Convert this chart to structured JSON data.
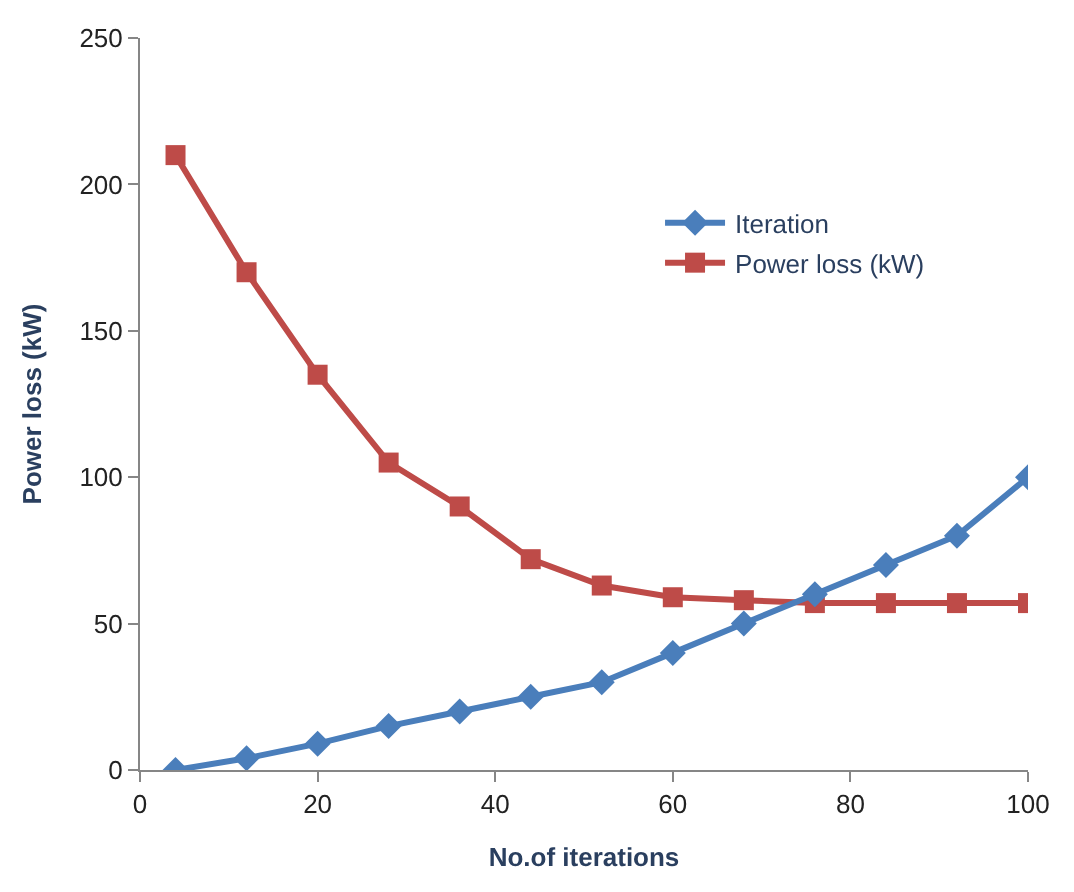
{
  "chart_data": {
    "type": "line",
    "xlabel": "No.of iterations",
    "ylabel": "Power loss (kW)",
    "x": [
      4,
      12,
      20,
      28,
      36,
      44,
      52,
      60,
      68,
      76,
      84,
      92,
      100
    ],
    "series": [
      {
        "name": "Iteration",
        "color": "#4a7ebb",
        "marker": "diamond",
        "values": [
          0,
          4,
          9,
          15,
          20,
          25,
          30,
          40,
          50,
          60,
          70,
          80,
          100
        ]
      },
      {
        "name": "Power loss (kW)",
        "color": "#be4b48",
        "marker": "square",
        "values": [
          210,
          170,
          135,
          105,
          90,
          72,
          63,
          59,
          58,
          57,
          57,
          57,
          57
        ]
      }
    ],
    "xlim": [
      0,
      100
    ],
    "xticks": [
      0,
      20,
      40,
      60,
      80,
      100
    ],
    "ylim": [
      0,
      250
    ],
    "yticks": [
      0,
      50,
      100,
      150,
      200,
      250
    ],
    "legend": "right"
  }
}
